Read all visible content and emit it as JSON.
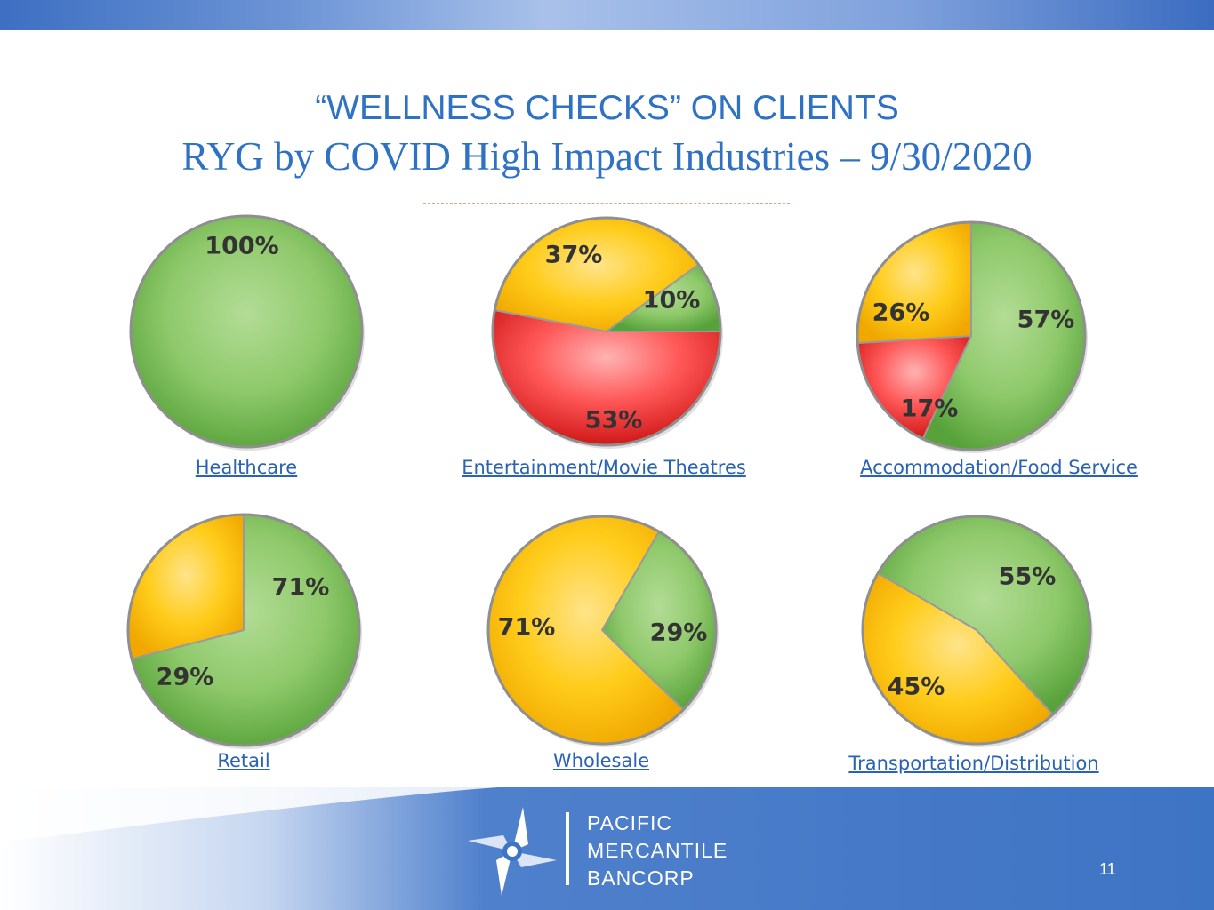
{
  "header": {
    "title_line1": "“WELLNESS CHECKS” ON CLIENTS",
    "title_line2": "RYG by COVID High Impact Industries – 9/30/2020"
  },
  "colors": {
    "red": "#e82a2a",
    "yellow": "#ffc000",
    "green": "#6fb54e",
    "accent": "#2f72c4"
  },
  "chart_data": [
    {
      "type": "pie",
      "title": "Healthcare",
      "slices": [
        {
          "color": "green",
          "value": 100,
          "label": "100%"
        }
      ]
    },
    {
      "type": "pie",
      "title": "Entertainment/Movie Theatres",
      "slices": [
        {
          "color": "red",
          "value": 53,
          "label": "53%"
        },
        {
          "color": "yellow",
          "value": 37,
          "label": "37%"
        },
        {
          "color": "green",
          "value": 10,
          "label": "10%"
        }
      ]
    },
    {
      "type": "pie",
      "title": "Accommodation/Food Service",
      "slices": [
        {
          "color": "green",
          "value": 57,
          "label": "57%"
        },
        {
          "color": "red",
          "value": 17,
          "label": "17%"
        },
        {
          "color": "yellow",
          "value": 26,
          "label": "26%"
        }
      ]
    },
    {
      "type": "pie",
      "title": "Retail",
      "slices": [
        {
          "color": "green",
          "value": 71,
          "label": "71%"
        },
        {
          "color": "yellow",
          "value": 29,
          "label": "29%"
        }
      ]
    },
    {
      "type": "pie",
      "title": "Wholesale",
      "slices": [
        {
          "color": "green",
          "value": 29,
          "label": "29%"
        },
        {
          "color": "yellow",
          "value": 71,
          "label": "71%"
        }
      ]
    },
    {
      "type": "pie",
      "title": "Transportation/Distribution",
      "slices": [
        {
          "color": "green",
          "value": 55,
          "label": "55%"
        },
        {
          "color": "yellow",
          "value": 45,
          "label": "45%"
        }
      ]
    }
  ],
  "footer": {
    "logo_icon": "pinwheel-logo-icon",
    "company_line1": "PACIFIC",
    "company_line2": "MERCANTILE",
    "company_line3": "BANCORP",
    "page_number": "11"
  }
}
